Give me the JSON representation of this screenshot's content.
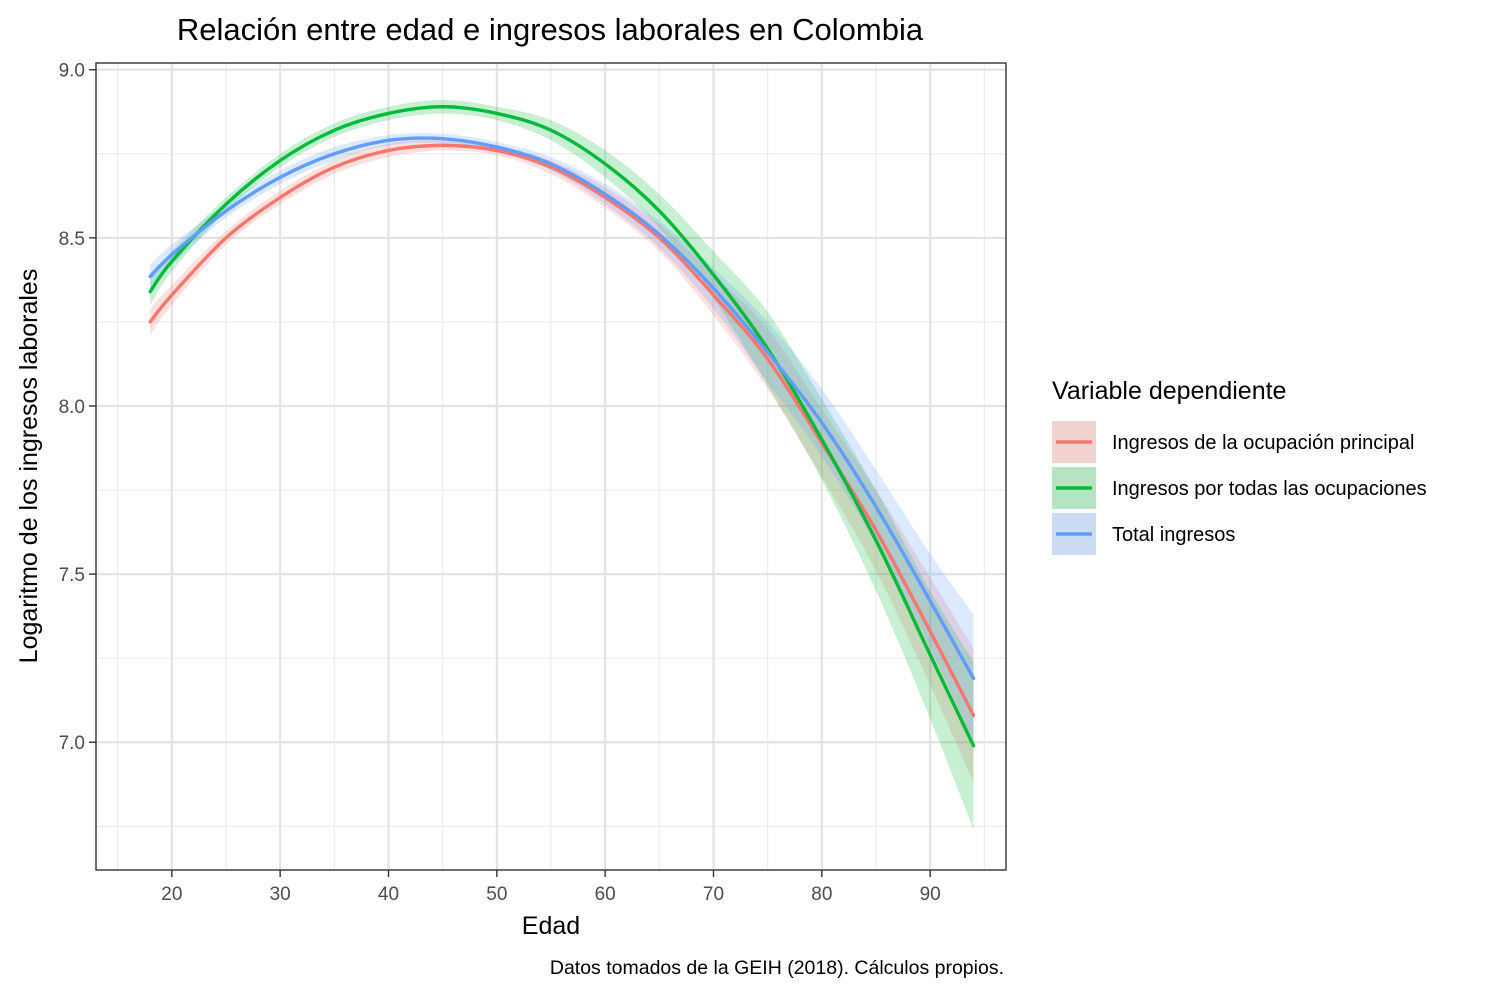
{
  "chart_data": {
    "type": "line",
    "title": "Relación entre edad e ingresos laborales en Colombia",
    "xlabel": "Edad",
    "ylabel": "Logaritmo de los ingresos laborales",
    "caption": "Datos tomados de la GEIH (2018). Cálculos propios.",
    "xlim": [
      13,
      97
    ],
    "ylim": [
      6.62,
      9.02
    ],
    "x_ticks": [
      20,
      30,
      40,
      50,
      60,
      70,
      80,
      90
    ],
    "y_ticks": [
      7.0,
      7.5,
      8.0,
      8.5,
      9.0
    ],
    "x_tick_labels": [
      "20",
      "30",
      "40",
      "50",
      "60",
      "70",
      "80",
      "90"
    ],
    "y_tick_labels": [
      "7.0",
      "7.5",
      "8.0",
      "8.5",
      "9.0"
    ],
    "grid": true,
    "legend": {
      "title": "Variable dependiente",
      "position": "right"
    },
    "series": [
      {
        "name": "Ingresos de la ocupación principal",
        "color": "#F8766D",
        "x": [
          18,
          20,
          25,
          30,
          35,
          40,
          45,
          50,
          55,
          60,
          65,
          70,
          75,
          80,
          85,
          90,
          94
        ],
        "y": [
          8.25,
          8.33,
          8.5,
          8.62,
          8.71,
          8.76,
          8.775,
          8.76,
          8.71,
          8.62,
          8.5,
          8.33,
          8.14,
          7.89,
          7.63,
          7.33,
          7.08
        ],
        "lower": [
          8.21,
          8.3,
          8.48,
          8.6,
          8.69,
          8.74,
          8.76,
          8.745,
          8.69,
          8.59,
          8.46,
          8.27,
          8.05,
          7.79,
          7.51,
          7.17,
          6.88
        ],
        "upper": [
          8.29,
          8.36,
          8.52,
          8.64,
          8.73,
          8.78,
          8.79,
          8.775,
          8.73,
          8.65,
          8.54,
          8.39,
          8.23,
          7.99,
          7.75,
          7.49,
          7.28
        ]
      },
      {
        "name": "Ingresos por todas las ocupaciones",
        "color": "#00BA38",
        "x": [
          18,
          20,
          25,
          30,
          35,
          40,
          45,
          50,
          55,
          60,
          65,
          70,
          75,
          80,
          85,
          90,
          94
        ],
        "y": [
          8.34,
          8.43,
          8.6,
          8.73,
          8.82,
          8.87,
          8.89,
          8.87,
          8.82,
          8.72,
          8.58,
          8.39,
          8.17,
          7.9,
          7.6,
          7.26,
          6.99
        ],
        "lower": [
          8.3,
          8.4,
          8.58,
          8.71,
          8.8,
          8.85,
          8.87,
          8.85,
          8.79,
          8.68,
          8.53,
          8.32,
          8.06,
          7.78,
          7.45,
          7.07,
          6.74
        ],
        "upper": [
          8.38,
          8.46,
          8.62,
          8.75,
          8.84,
          8.89,
          8.91,
          8.89,
          8.85,
          8.76,
          8.63,
          8.46,
          8.28,
          8.02,
          7.75,
          7.45,
          7.24
        ]
      },
      {
        "name": "Total ingresos",
        "color": "#619CFF",
        "x": [
          18,
          20,
          25,
          30,
          35,
          40,
          45,
          50,
          55,
          60,
          65,
          70,
          75,
          80,
          85,
          90,
          94
        ],
        "y": [
          8.385,
          8.45,
          8.58,
          8.68,
          8.75,
          8.79,
          8.795,
          8.77,
          8.72,
          8.63,
          8.51,
          8.35,
          8.16,
          7.95,
          7.7,
          7.42,
          7.19
        ],
        "lower": [
          8.35,
          8.42,
          8.56,
          8.66,
          8.73,
          8.775,
          8.78,
          8.755,
          8.7,
          8.6,
          8.47,
          8.29,
          8.07,
          7.85,
          7.59,
          7.28,
          7.0
        ],
        "upper": [
          8.42,
          8.48,
          8.6,
          8.7,
          8.77,
          8.805,
          8.81,
          8.785,
          8.74,
          8.66,
          8.55,
          8.41,
          8.25,
          8.05,
          7.81,
          7.56,
          7.38
        ]
      }
    ]
  }
}
